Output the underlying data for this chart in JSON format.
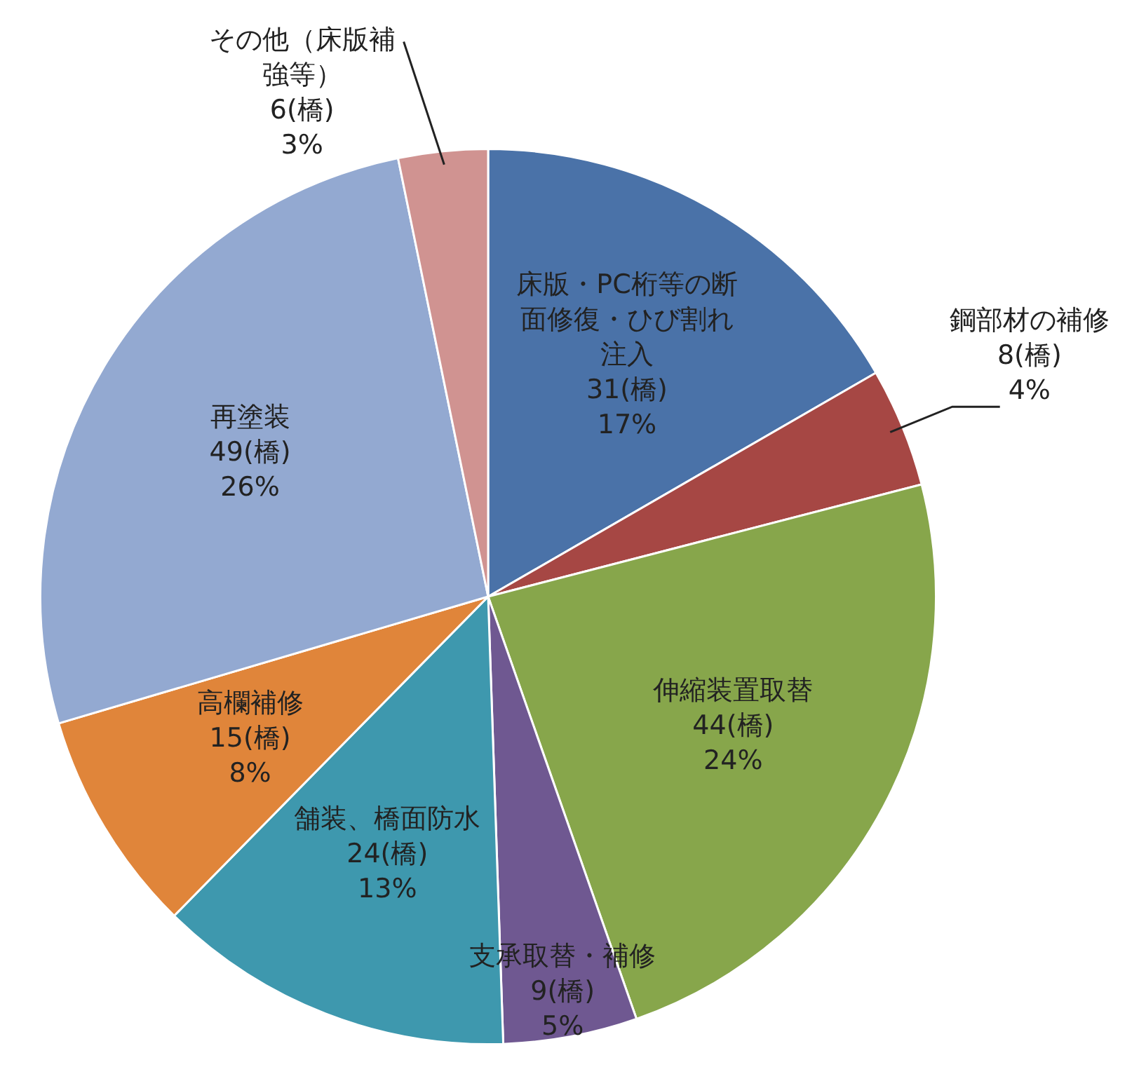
{
  "chart_data": {
    "type": "pie",
    "categories": [
      "床版・PC桁等の断面修復・ひび割れ注入",
      "鋼部材の補修",
      "伸縮装置取替",
      "支承取替・補修",
      "舗装、橋面防水",
      "高欄補修",
      "再塗装",
      "その他（床版補強等）"
    ],
    "values": [
      31,
      8,
      44,
      9,
      24,
      15,
      49,
      6
    ],
    "colors": [
      "#4a72a8",
      "#a64744",
      "#87a64b",
      "#6f5891",
      "#3e98ae",
      "#e0853a",
      "#93a9d1",
      "#d09391"
    ],
    "value_labels": [
      "31(橋)\n17%",
      "8(橋)\n4%",
      "44(橋)\n24%",
      "9(橋)\n5%",
      "24(橋)\n13%",
      "15(橋)\n8%",
      "49(橋)\n26%",
      "6(橋)\n3%"
    ],
    "legend": false
  }
}
